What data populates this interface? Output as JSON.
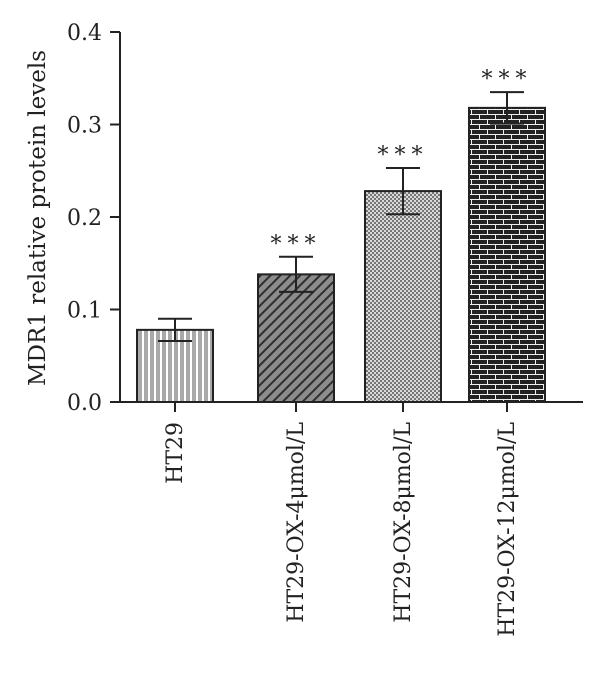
{
  "chart_data": {
    "type": "bar",
    "ylabel": "MDR1 relative protein levels",
    "xlabel": "",
    "title": "",
    "ylim": [
      0,
      0.4
    ],
    "yticks": [
      "0.0",
      "0.1",
      "0.2",
      "0.3",
      "0.4"
    ],
    "categories": [
      "HT29",
      "HT29-OX-4μmol/L",
      "HT29-OX-8μmol/L",
      "HT29-OX-12μmol/L"
    ],
    "values": [
      0.078,
      0.138,
      0.228,
      0.318
    ],
    "errors": [
      0.012,
      0.019,
      0.025,
      0.017
    ],
    "significance": [
      "",
      "***",
      "***",
      "***"
    ],
    "bar_fills": [
      "vertical-stripes",
      "diagonal-hatch",
      "checker",
      "brick"
    ],
    "colors": {
      "axis": "#222222",
      "bar_dark": "#2b2b2b",
      "bar_mid": "#8a8a8a",
      "bar_light": "#bdbdbd"
    }
  }
}
